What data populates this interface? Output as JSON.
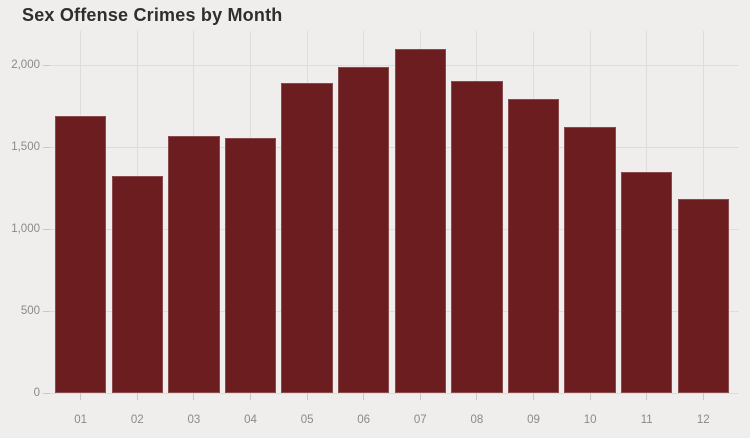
{
  "colors": {
    "background": "#efeeec",
    "bar": "#6c1d20",
    "gridline": "#dedddb",
    "axis_tick": "#c9c8c6",
    "axis_text": "#8a8a8a",
    "title_text": "#2e2e2e"
  },
  "chart_data": {
    "type": "bar",
    "title": "Sex Offense Crimes by Month",
    "categories": [
      "01",
      "02",
      "03",
      "04",
      "05",
      "06",
      "07",
      "08",
      "09",
      "10",
      "11",
      "12"
    ],
    "values": [
      1690,
      1325,
      1570,
      1555,
      1890,
      1990,
      2100,
      1900,
      1790,
      1620,
      1350,
      1180
    ],
    "xlabel": "",
    "ylabel": "",
    "ylim": [
      0,
      2200
    ],
    "yticks": [
      0,
      500,
      1000,
      1500,
      2000
    ],
    "ytick_labels": [
      "0",
      "500",
      "1,000",
      "1,500",
      "2,000"
    ],
    "grid": true,
    "legend": false
  }
}
